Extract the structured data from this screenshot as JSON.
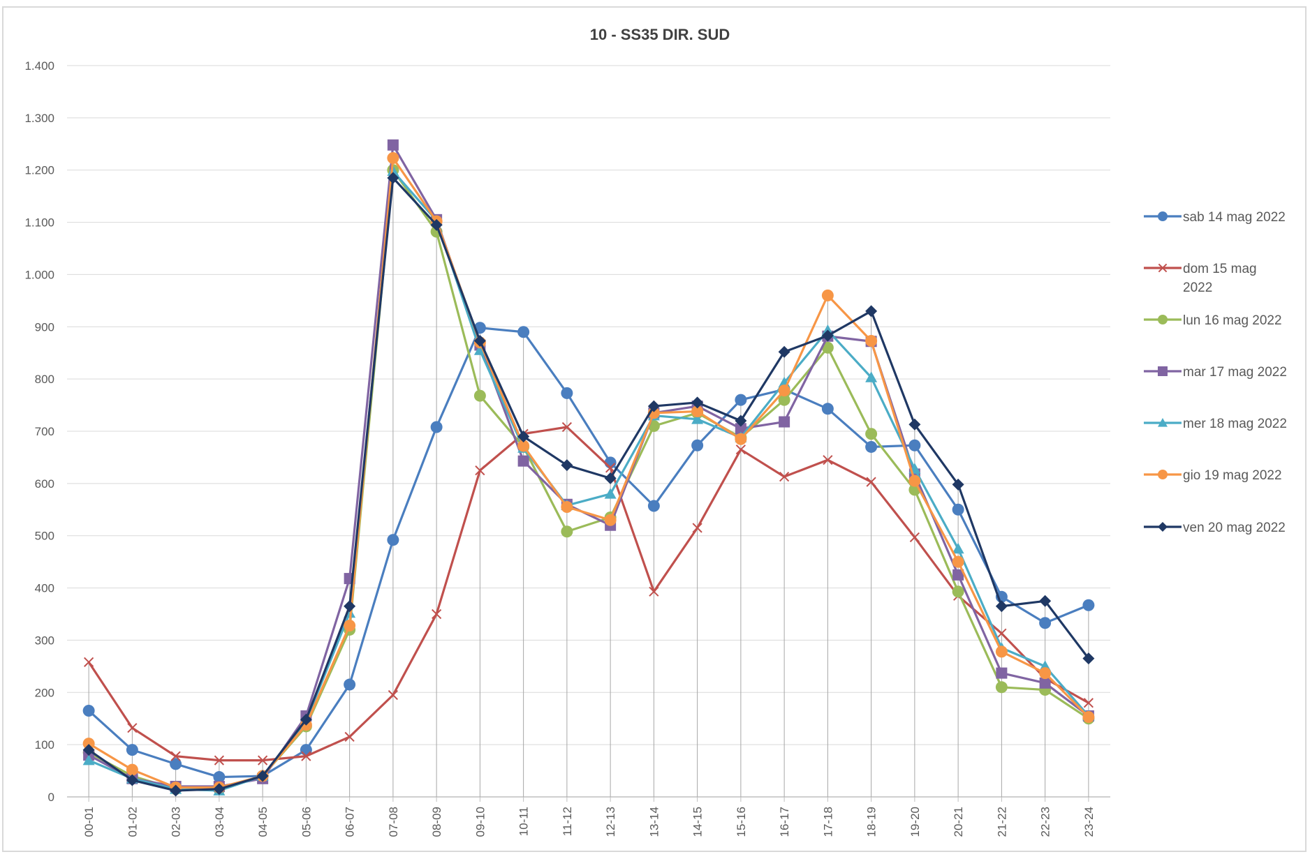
{
  "chart_data": {
    "type": "line",
    "title": "10 - SS35 DIR. SUD",
    "xlabel": "",
    "ylabel": "",
    "ylim": [
      0,
      1400
    ],
    "y_ticks": [
      0,
      100,
      200,
      300,
      400,
      500,
      600,
      700,
      800,
      900,
      1000,
      1100,
      1200,
      1300,
      1400
    ],
    "y_tick_labels": [
      "0",
      "100",
      "200",
      "300",
      "400",
      "500",
      "600",
      "700",
      "800",
      "900",
      "1.000",
      "1.100",
      "1.200",
      "1.300",
      "1.400"
    ],
    "grid": true,
    "vertical_drop_lines": true,
    "legend_position": "right",
    "categories": [
      "00-01",
      "01-02",
      "02-03",
      "03-04",
      "04-05",
      "05-06",
      "06-07",
      "07-08",
      "08-09",
      "09-10",
      "10-11",
      "11-12",
      "12-13",
      "13-14",
      "14-15",
      "15-16",
      "16-17",
      "17-18",
      "18-19",
      "19-20",
      "20-21",
      "21-22",
      "22-23",
      "23-24"
    ],
    "series": [
      {
        "name": "sab 14 mag 2022",
        "color": "#4a7ebf",
        "marker": "circle",
        "values": [
          165,
          90,
          63,
          38,
          40,
          90,
          215,
          492,
          708,
          898,
          890,
          773,
          640,
          557,
          673,
          760,
          780,
          743,
          670,
          673,
          550,
          383,
          333,
          367
        ]
      },
      {
        "name": "dom 15 mag 2022",
        "label_lines": [
          "dom 15 mag",
          "2022"
        ],
        "color": "#c0504d",
        "marker": "x",
        "values": [
          258,
          132,
          78,
          70,
          70,
          78,
          115,
          195,
          350,
          625,
          695,
          708,
          630,
          393,
          515,
          665,
          613,
          645,
          603,
          497,
          385,
          313,
          227,
          180
        ]
      },
      {
        "name": "lun 16 mag 2022",
        "color": "#9bbb59",
        "marker": "circle",
        "values": [
          85,
          40,
          15,
          15,
          40,
          135,
          320,
          1200,
          1082,
          768,
          670,
          508,
          535,
          710,
          735,
          688,
          760,
          860,
          695,
          588,
          393,
          210,
          205,
          150
        ]
      },
      {
        "name": "mar 17 mag 2022",
        "color": "#8064a2",
        "marker": "square",
        "values": [
          80,
          35,
          20,
          20,
          35,
          155,
          418,
          1248,
          1105,
          865,
          643,
          560,
          520,
          735,
          748,
          705,
          718,
          882,
          872,
          618,
          425,
          237,
          218,
          155
        ]
      },
      {
        "name": "mer 18 mag 2022",
        "color": "#4bacc6",
        "marker": "triangle",
        "values": [
          70,
          35,
          15,
          12,
          40,
          145,
          352,
          1198,
          1103,
          855,
          668,
          558,
          580,
          730,
          723,
          688,
          793,
          893,
          803,
          628,
          475,
          285,
          250,
          155
        ]
      },
      {
        "name": "gio 19 mag 2022",
        "color": "#f79646",
        "marker": "circle",
        "values": [
          102,
          52,
          18,
          18,
          40,
          138,
          328,
          1223,
          1102,
          870,
          672,
          555,
          530,
          735,
          738,
          685,
          778,
          960,
          873,
          605,
          450,
          278,
          237,
          153
        ]
      },
      {
        "name": "ven 20 mag 2022",
        "color": "#1f3864",
        "marker": "diamond",
        "values": [
          90,
          32,
          12,
          15,
          40,
          148,
          365,
          1185,
          1095,
          873,
          690,
          635,
          610,
          748,
          755,
          720,
          852,
          883,
          930,
          713,
          598,
          365,
          375,
          265
        ]
      }
    ]
  }
}
